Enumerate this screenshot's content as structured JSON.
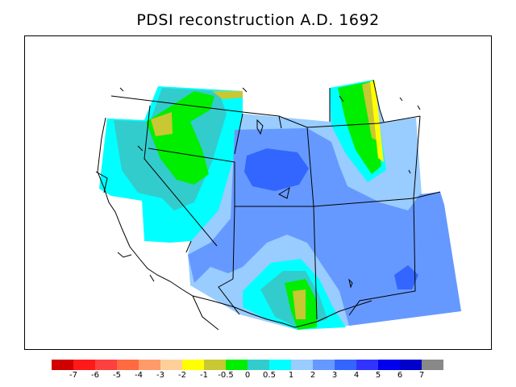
{
  "title": "PDSI reconstruction A.D. 1692",
  "legend": {
    "colors": [
      "#d10000",
      "#ff1a1a",
      "#ff4040",
      "#ff6a40",
      "#ff9b6a",
      "#ffcf9a",
      "#ffff00",
      "#c8c832",
      "#00ee00",
      "#33cccc",
      "#00ffff",
      "#99ccff",
      "#6699ff",
      "#3366ff",
      "#3333ff",
      "#0000ee",
      "#0000cc",
      "#888888"
    ],
    "labels": [
      "-7",
      "-6",
      "-5",
      "-4",
      "-3",
      "-2",
      "-1",
      "-0.5",
      "0",
      "0.5",
      "1",
      "2",
      "3",
      "4",
      "5",
      "6",
      "7"
    ]
  },
  "map": {
    "variable": "PDSI",
    "year": "A.D. 1692",
    "region": "Western United States",
    "dominant_class": "2",
    "dry_areas": [
      "-1",
      "-0.5",
      "0"
    ],
    "wet_core_class": "4"
  }
}
